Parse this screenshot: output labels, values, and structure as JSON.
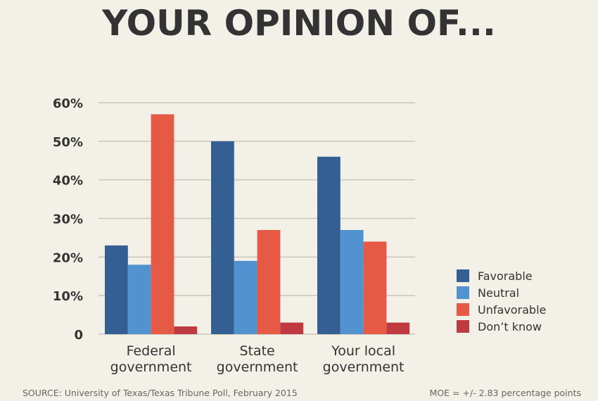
{
  "chart_data": {
    "type": "bar",
    "title": "YOUR OPINION OF...",
    "categories": [
      [
        "Federal",
        "government"
      ],
      [
        "State",
        "government"
      ],
      [
        "Your local",
        "government"
      ]
    ],
    "series": [
      {
        "name": "Favorable",
        "color": "#345f93",
        "values": [
          23,
          50,
          46
        ]
      },
      {
        "name": "Neutral",
        "color": "#5192cf",
        "values": [
          18,
          19,
          27
        ]
      },
      {
        "name": "Unfavorable",
        "color": "#e65a45",
        "values": [
          57,
          27,
          24
        ]
      },
      {
        "name": "Don’t know",
        "color": "#bf3a40",
        "values": [
          2,
          3,
          3
        ]
      }
    ],
    "yticks": [
      "0",
      "10%",
      "20%",
      "30%",
      "40%",
      "50%",
      "60%"
    ],
    "ylim": [
      0,
      60
    ],
    "grid": true,
    "legend": "right",
    "xlabel": "",
    "ylabel": ""
  },
  "footer": {
    "source": "SOURCE: University of Texas/Texas Tribune Poll, February 2015",
    "moe": "MOE = +/- 2.83 percentage points"
  }
}
